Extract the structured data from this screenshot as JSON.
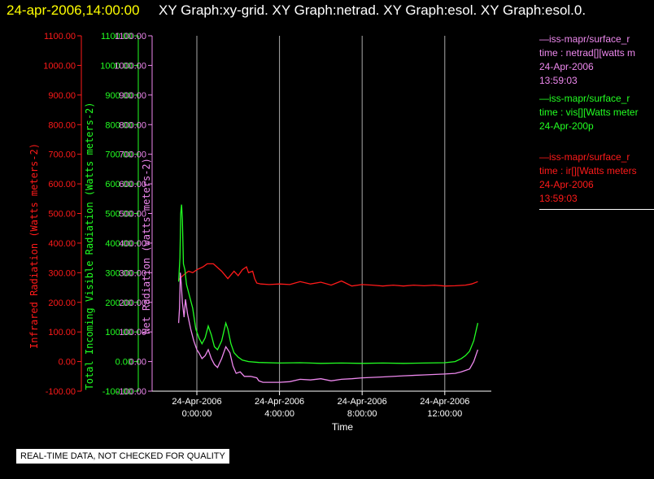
{
  "header": {
    "date_label": "24-apr-2006,14:00:00",
    "graphs_label": "XY Graph:xy-grid.  XY Graph:netrad.  XY Graph:esol.  XY Graph:esol.0."
  },
  "colors": {
    "infrared": "#ff1a1a",
    "visible": "#22ff22",
    "net": "#ee88ee",
    "axis": "#ffffff",
    "background": "#000000"
  },
  "legend": [
    {
      "color": "#ee88ee",
      "lines": [
        "—iss-mapr/surface_r",
        "time : netrad[][watts m",
        "24-Apr-2006",
        "13:59:03"
      ]
    },
    {
      "color": "#22ff22",
      "lines": [
        "—iss-mapr/surface_r",
        "time : vis[][Watts meter",
        "24-Apr-200p"
      ]
    },
    {
      "color": "#ff1a1a",
      "lines": [
        "—iss-mapr/surface_r",
        "time : ir[][Watts meters",
        "24-Apr-2006",
        "13:59:03"
      ]
    }
  ],
  "disclaimer": "REAL-TIME DATA, NOT CHECKED FOR QUALITY",
  "chart_data": {
    "type": "line",
    "title": "",
    "xlabel": "Time",
    "x_ticks": [
      {
        "date": "24-Apr-2006",
        "time": "0:00:00",
        "hour": 0
      },
      {
        "date": "24-Apr-2006",
        "time": "4:00:00",
        "hour": 4
      },
      {
        "date": "24-Apr-2006",
        "time": "8:00:00",
        "hour": 8
      },
      {
        "date": "24-Apr-2006",
        "time": "12:00:00",
        "hour": 12
      }
    ],
    "xlim_hours": [
      -1,
      14.3
    ],
    "grid": "vertical lines at x ticks",
    "y_axes": [
      {
        "id": "ir",
        "label": "Infrared Radiation (Watts meters-2)",
        "color": "#ff1a1a",
        "ylim": [
          -100,
          1100
        ],
        "ticks": [
          "-100.00",
          "0.00",
          "100.00",
          "200.00",
          "300.00",
          "400.00",
          "500.00",
          "600.00",
          "700.00",
          "800.00",
          "900.00",
          "1000.00",
          "1100.00"
        ]
      },
      {
        "id": "vis",
        "label": "Total Incoming Visible Radiation (Watts meters-2)",
        "color": "#22ff22",
        "ylim": [
          -100,
          1100
        ],
        "ticks": [
          "-100.00",
          "0.00",
          "100.00",
          "200.00",
          "300.00",
          "400.00",
          "500.00",
          "600.00",
          "700.00",
          "800.00",
          "900.00",
          "1000.00",
          "1100.00"
        ]
      },
      {
        "id": "net",
        "label": "Net Radiation (watts meters-2)",
        "color": "#ee88ee",
        "ylim": [
          -100,
          1100
        ],
        "ticks": [
          "-100.00",
          "0.00",
          "100.00",
          "200.00",
          "300.00",
          "400.00",
          "500.00",
          "600.00",
          "700.00",
          "800.00",
          "900.00",
          "1000.00",
          "1100.00"
        ]
      }
    ],
    "series": [
      {
        "name": "time : ir[][Watts meters",
        "axis": "ir",
        "color": "#ff1a1a",
        "x": [
          -0.88,
          -0.75,
          -0.6,
          -0.4,
          -0.2,
          0,
          0.3,
          0.5,
          0.8,
          1.2,
          1.5,
          1.8,
          2.0,
          2.2,
          2.4,
          2.5,
          2.7,
          2.8,
          2.9,
          3.1,
          3.5,
          4.0,
          4.5,
          5,
          5.5,
          6,
          6.5,
          7,
          7.5,
          8,
          8.5,
          9,
          9.5,
          10,
          10.5,
          11,
          11.5,
          12,
          12.5,
          13,
          13.3,
          13.6
        ],
        "y": [
          275,
          285,
          295,
          305,
          300,
          310,
          320,
          330,
          330,
          305,
          280,
          305,
          290,
          310,
          320,
          300,
          305,
          280,
          265,
          262,
          260,
          262,
          260,
          270,
          262,
          268,
          258,
          272,
          255,
          260,
          258,
          255,
          258,
          255,
          258,
          256,
          258,
          255,
          256,
          258,
          262,
          270
        ]
      },
      {
        "name": "time : vis[][Watts meter",
        "axis": "vis",
        "color": "#22ff22",
        "x": [
          -0.88,
          -0.82,
          -0.78,
          -0.74,
          -0.7,
          -0.65,
          -0.58,
          -0.5,
          -0.35,
          -0.2,
          -0.05,
          0.1,
          0.25,
          0.4,
          0.55,
          0.7,
          0.85,
          1.0,
          1.2,
          1.4,
          1.5,
          1.65,
          1.8,
          2.0,
          2.2,
          2.5,
          3,
          4,
          5,
          6,
          7,
          8,
          9,
          10,
          11,
          12,
          12.5,
          12.8,
          13.0,
          13.2,
          13.4,
          13.6
        ],
        "y": [
          270,
          350,
          500,
          530,
          480,
          330,
          310,
          260,
          220,
          180,
          110,
          80,
          60,
          80,
          120,
          90,
          50,
          40,
          70,
          130,
          110,
          60,
          30,
          15,
          5,
          0,
          -3,
          -5,
          -4,
          -6,
          -5,
          -6,
          -5,
          -6,
          -5,
          -4,
          0,
          10,
          20,
          35,
          70,
          130
        ]
      },
      {
        "name": "time : netrad[][watts m",
        "axis": "net",
        "color": "#ee88ee",
        "x": [
          -0.88,
          -0.84,
          -0.8,
          -0.75,
          -0.7,
          -0.62,
          -0.55,
          -0.45,
          -0.3,
          -0.15,
          0,
          0.1,
          0.25,
          0.4,
          0.55,
          0.7,
          0.85,
          1.0,
          1.2,
          1.4,
          1.6,
          1.75,
          1.9,
          2.1,
          2.3,
          2.6,
          2.9,
          3.0,
          3.2,
          3.5,
          4,
          4.5,
          5,
          5.5,
          6,
          6.5,
          7,
          7.5,
          8,
          9,
          10,
          11,
          12,
          12.5,
          12.8,
          13.0,
          13.2,
          13.4,
          13.6
        ],
        "y": [
          130,
          180,
          300,
          260,
          200,
          150,
          210,
          160,
          110,
          70,
          40,
          30,
          10,
          20,
          40,
          10,
          -10,
          -20,
          10,
          50,
          30,
          -15,
          -40,
          -35,
          -50,
          -50,
          -55,
          -65,
          -70,
          -70,
          -70,
          -68,
          -60,
          -62,
          -58,
          -65,
          -60,
          -58,
          -55,
          -52,
          -48,
          -45,
          -42,
          -40,
          -35,
          -30,
          -25,
          0,
          40
        ]
      }
    ]
  }
}
